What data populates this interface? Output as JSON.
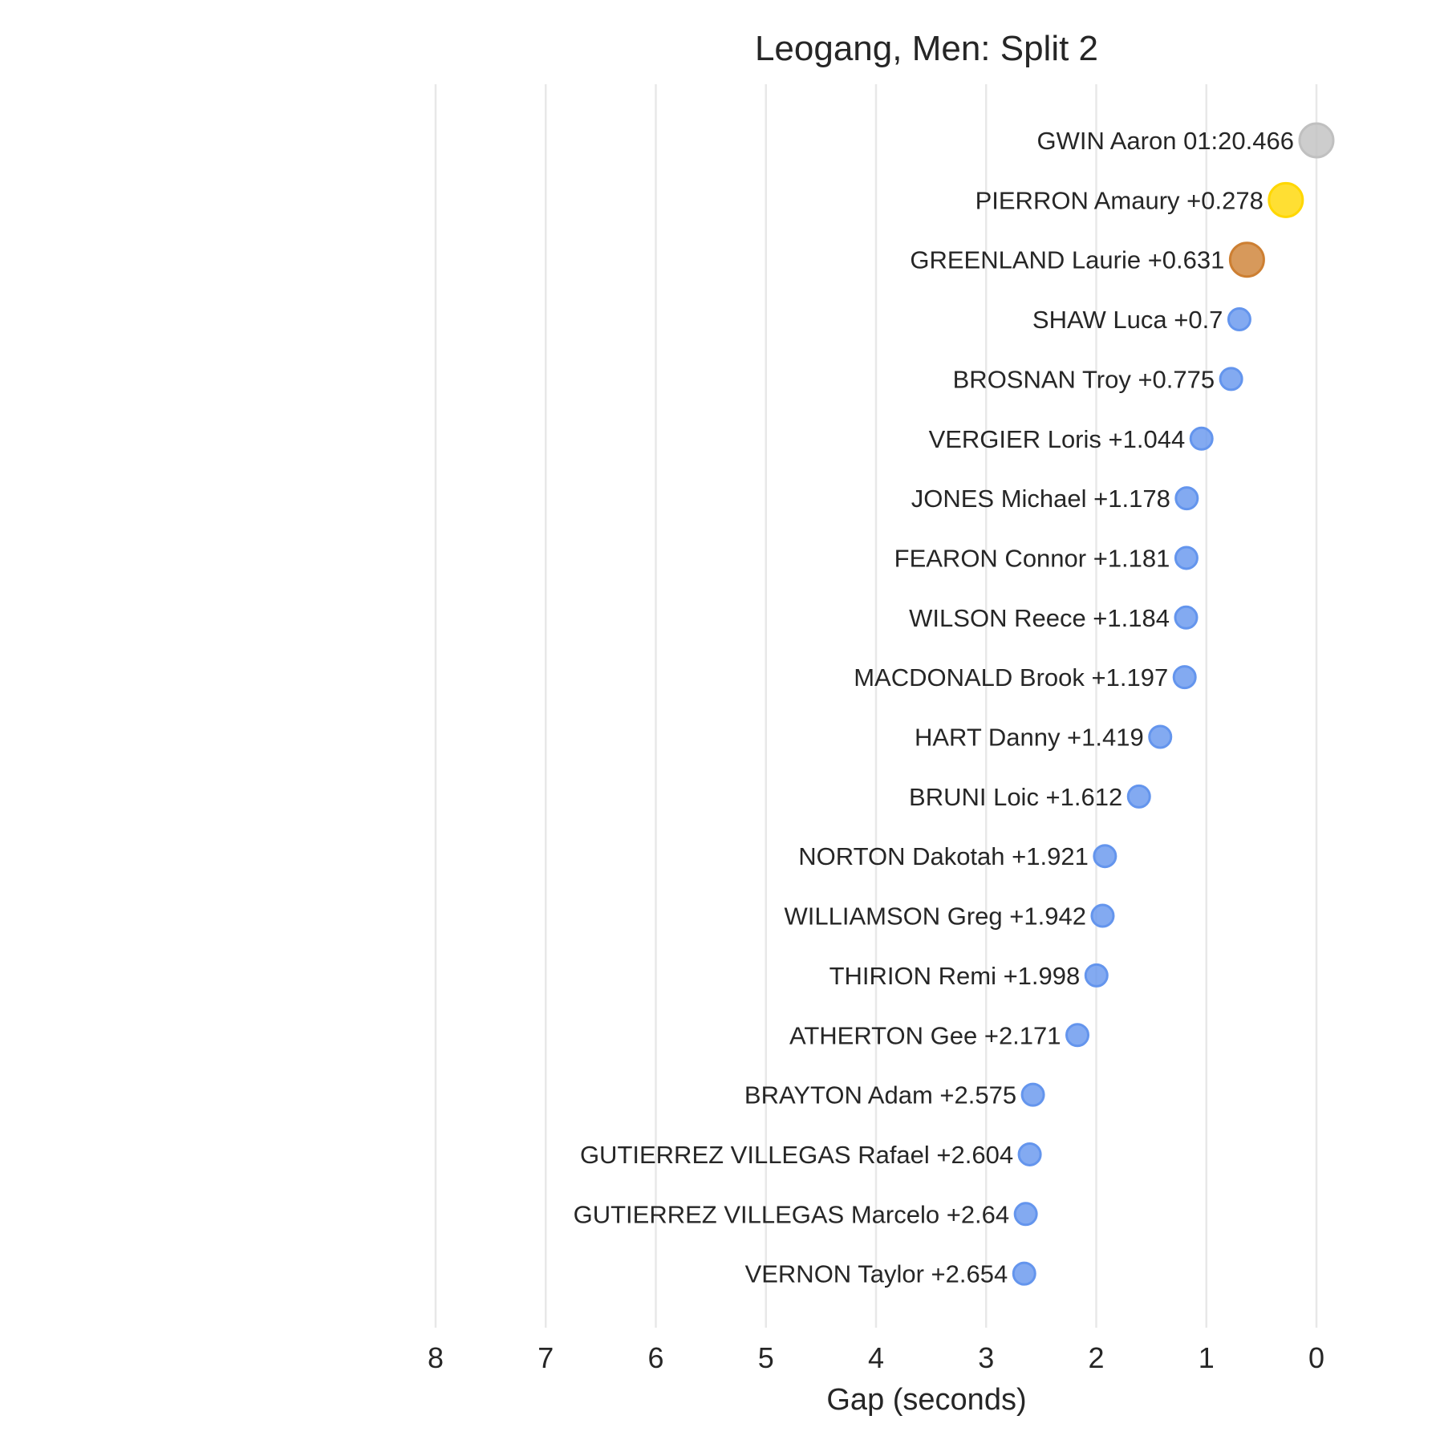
{
  "chart_data": {
    "type": "scatter",
    "title": "Leogang, Men: Split 2",
    "xlabel": "Gap (seconds)",
    "ylabel": "",
    "xlim": [
      8,
      0
    ],
    "x_ticks": [
      "8",
      "7",
      "6",
      "5",
      "4",
      "3",
      "2",
      "1",
      "0"
    ],
    "x_tick_values": [
      8,
      7,
      6,
      5,
      4,
      3,
      2,
      1,
      0
    ],
    "grid": "vertical",
    "colors": {
      "gold": "#FFD700",
      "silver": "#C0C0C0",
      "bronze": "#CD7F32",
      "other": "#6495ED"
    },
    "points": [
      {
        "label": "GWIN Aaron 01:20.466",
        "gap": 0.0,
        "medal": "silver"
      },
      {
        "label": "PIERRON Amaury +0.278",
        "gap": 0.278,
        "medal": "gold"
      },
      {
        "label": "GREENLAND Laurie +0.631",
        "gap": 0.631,
        "medal": "bronze"
      },
      {
        "label": "SHAW Luca +0.7",
        "gap": 0.7,
        "medal": "other"
      },
      {
        "label": "BROSNAN Troy +0.775",
        "gap": 0.775,
        "medal": "other"
      },
      {
        "label": "VERGIER Loris +1.044",
        "gap": 1.044,
        "medal": "other"
      },
      {
        "label": "JONES Michael +1.178",
        "gap": 1.178,
        "medal": "other"
      },
      {
        "label": "FEARON Connor +1.181",
        "gap": 1.181,
        "medal": "other"
      },
      {
        "label": "WILSON Reece +1.184",
        "gap": 1.184,
        "medal": "other"
      },
      {
        "label": "MACDONALD Brook +1.197",
        "gap": 1.197,
        "medal": "other"
      },
      {
        "label": "HART Danny +1.419",
        "gap": 1.419,
        "medal": "other"
      },
      {
        "label": "BRUNI Loic +1.612",
        "gap": 1.612,
        "medal": "other"
      },
      {
        "label": "NORTON Dakotah +1.921",
        "gap": 1.921,
        "medal": "other"
      },
      {
        "label": "WILLIAMSON Greg +1.942",
        "gap": 1.942,
        "medal": "other"
      },
      {
        "label": "THIRION Remi +1.998",
        "gap": 1.998,
        "medal": "other"
      },
      {
        "label": "ATHERTON Gee +2.171",
        "gap": 2.171,
        "medal": "other"
      },
      {
        "label": "BRAYTON Adam +2.575",
        "gap": 2.575,
        "medal": "other"
      },
      {
        "label": "GUTIERREZ VILLEGAS Rafael +2.604",
        "gap": 2.604,
        "medal": "other"
      },
      {
        "label": "GUTIERREZ VILLEGAS Marcelo +2.64",
        "gap": 2.64,
        "medal": "other"
      },
      {
        "label": "VERNON Taylor +2.654",
        "gap": 2.654,
        "medal": "other"
      }
    ]
  }
}
